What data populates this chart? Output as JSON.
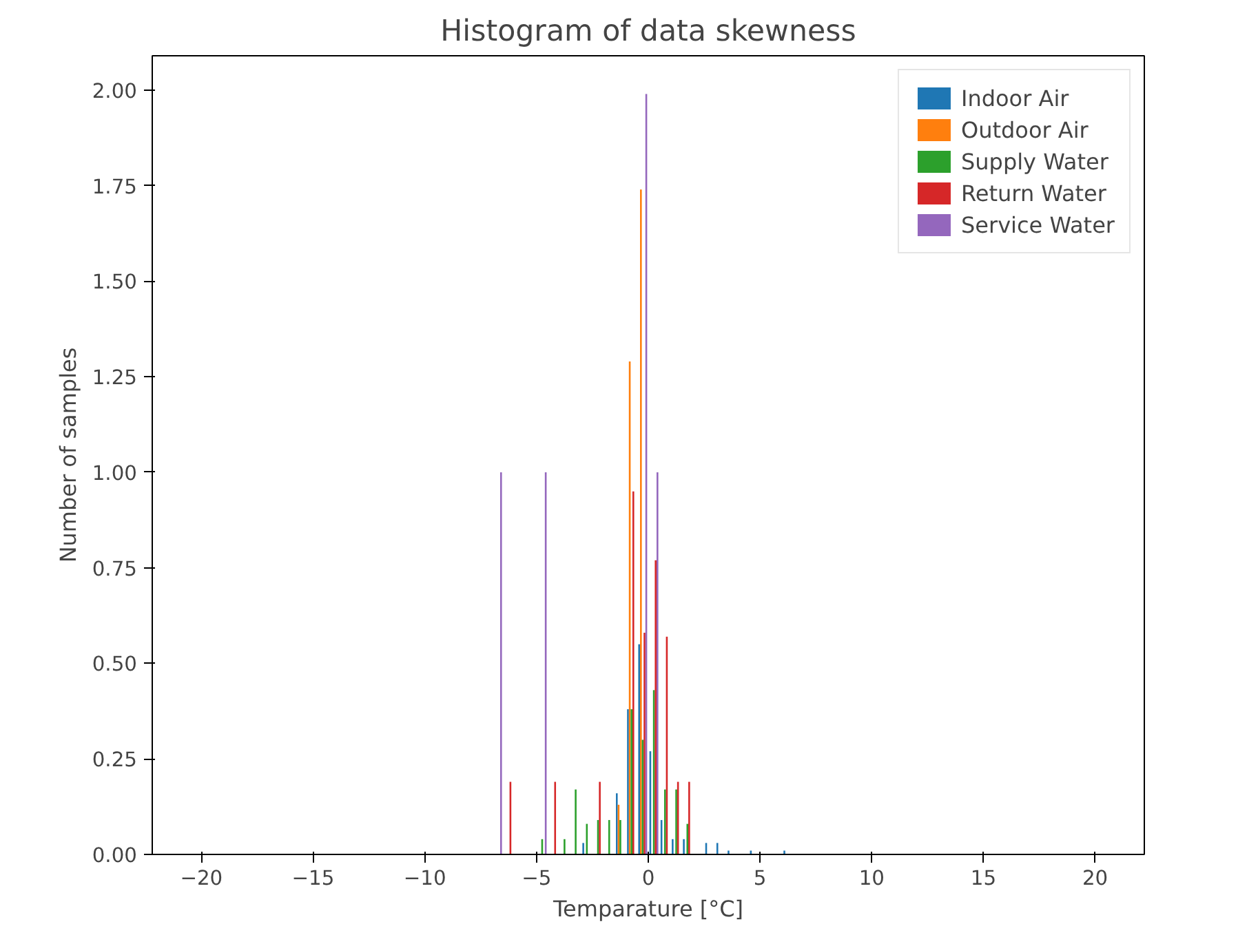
{
  "chart_data": {
    "type": "histogram",
    "title": "Histogram of data skewness",
    "xlabel": "Temparature [°C]",
    "ylabel": "Number of samples",
    "xlim": [
      -22.2,
      22.2
    ],
    "ylim": [
      0,
      2.09
    ],
    "xticks": [
      -20,
      -15,
      -10,
      -5,
      0,
      5,
      10,
      15,
      20
    ],
    "yticks": [
      {
        "value": 0,
        "label": "0.00"
      },
      {
        "value": 0.25,
        "label": "0.25"
      },
      {
        "value": 0.5,
        "label": "0.50"
      },
      {
        "value": 0.75,
        "label": "0.75"
      },
      {
        "value": 1,
        "label": "1.00"
      },
      {
        "value": 1.25,
        "label": "1.25"
      },
      {
        "value": 1.5,
        "label": "1.50"
      },
      {
        "value": 1.75,
        "label": "1.75"
      },
      {
        "value": 2,
        "label": "2.00"
      }
    ],
    "grid": false,
    "legend": "top right",
    "bins": [
      -7,
      -6.5,
      -6,
      -5.5,
      -5,
      -4.5,
      -4,
      -3.5,
      -3,
      -2.5,
      -2,
      -1.5,
      -1,
      -0.5,
      0,
      0.5,
      1,
      1.5,
      2,
      2.5,
      3,
      3.5,
      4,
      4.5,
      5,
      5.5,
      6,
      6.5,
      7
    ],
    "series": [
      {
        "name": "Indoor Air",
        "color": "#1f77b4",
        "values": [
          0,
          0,
          0,
          0,
          0,
          0,
          0,
          0,
          0.03,
          0,
          0,
          0.16,
          0.38,
          0.55,
          0.27,
          0.09,
          0.04,
          0.04,
          0,
          0.03,
          0.03,
          0.01,
          0,
          0.01,
          0,
          0,
          0.01,
          0
        ]
      },
      {
        "name": "Outdoor Air",
        "color": "#ff7f0e",
        "values": [
          0,
          0,
          0,
          0,
          0,
          0,
          0,
          0,
          0,
          0,
          0,
          0.13,
          1.29,
          1.74,
          0,
          0,
          0,
          0,
          0,
          0,
          0,
          0,
          0,
          0,
          0,
          0,
          0,
          0
        ]
      },
      {
        "name": "Supply Water",
        "color": "#2ca02c",
        "values": [
          0,
          0,
          0,
          0,
          0.04,
          0,
          0.04,
          0.17,
          0.08,
          0.09,
          0.09,
          0.09,
          0.38,
          0.3,
          0.43,
          0.17,
          0.17,
          0.08,
          0,
          0,
          0,
          0,
          0,
          0,
          0,
          0,
          0,
          0
        ]
      },
      {
        "name": "Return Water",
        "color": "#d62728",
        "values": [
          0,
          0.19,
          0,
          0,
          0,
          0.19,
          0,
          0,
          0,
          0.19,
          0,
          0,
          0.95,
          0.58,
          0.77,
          0.57,
          0.19,
          0.19,
          0,
          0,
          0,
          0,
          0,
          0,
          0,
          0,
          0,
          0
        ]
      },
      {
        "name": "Service Water",
        "color": "#9467bd",
        "values": [
          1.0,
          0,
          0,
          0,
          1.0,
          0,
          0,
          0,
          0,
          0,
          0,
          0,
          0,
          1.99,
          1.0,
          0,
          0,
          0,
          0,
          0,
          0,
          0,
          0,
          0,
          0,
          0,
          0,
          0
        ]
      }
    ]
  }
}
